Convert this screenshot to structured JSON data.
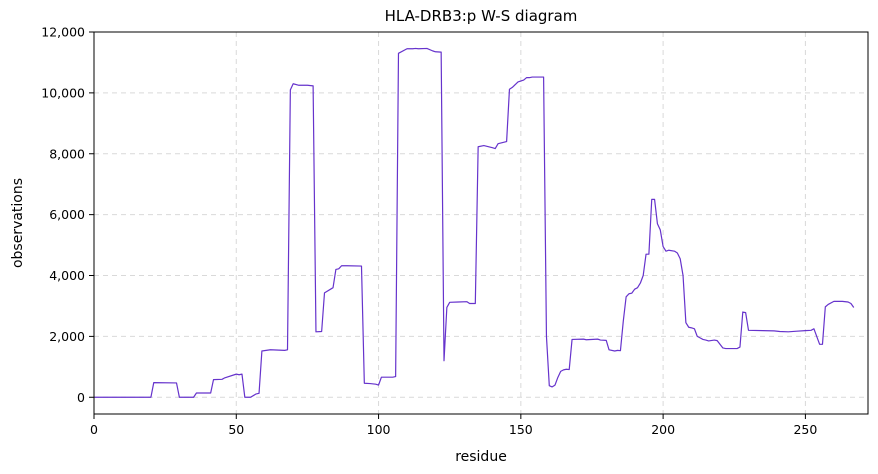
{
  "chart_data": {
    "type": "line",
    "title": "HLA-DRB3:p W-S diagram",
    "xlabel": "residue",
    "ylabel": "observations",
    "xlim": [
      0,
      272
    ],
    "ylim": [
      -550,
      12000
    ],
    "xticks": [
      0,
      50,
      100,
      150,
      200,
      250
    ],
    "xtick_labels": [
      "0",
      "50",
      "100",
      "150",
      "200",
      "250"
    ],
    "yticks": [
      0,
      2000,
      4000,
      6000,
      8000,
      10000,
      12000
    ],
    "ytick_labels": [
      "0",
      "2,000",
      "4,000",
      "6,000",
      "8,000",
      "10,000",
      "12,000"
    ],
    "grid": true,
    "series": [
      {
        "color": "#6633cc",
        "x": [
          0,
          20,
          21,
          29,
          30,
          35,
          36,
          41,
          42,
          45,
          46,
          50,
          51,
          52,
          53,
          55,
          57,
          58,
          59,
          62,
          67,
          68,
          69,
          70,
          72,
          75,
          77,
          78,
          80,
          81,
          84,
          85,
          86,
          87,
          89,
          94,
          95,
          97,
          99,
          100,
          101,
          104,
          105,
          106,
          107,
          110,
          112,
          113,
          114,
          117,
          119,
          120,
          122,
          123,
          124,
          125,
          128,
          131,
          132,
          134,
          135,
          137,
          140,
          141,
          142,
          145,
          146,
          147,
          149,
          151,
          152,
          153,
          154,
          155,
          158,
          159,
          160,
          161,
          162,
          163,
          164,
          165,
          166,
          167,
          168,
          172,
          173,
          177,
          178,
          180,
          181,
          183,
          184,
          185,
          186,
          187,
          188,
          189,
          190,
          191,
          192,
          193,
          194,
          195,
          196,
          197,
          198,
          199,
          200,
          201,
          202,
          204,
          205,
          206,
          207,
          208,
          209,
          210,
          211,
          212,
          213,
          214,
          215,
          216,
          218,
          219,
          221,
          222,
          226,
          227,
          228,
          229,
          230,
          235,
          239,
          241,
          244,
          247,
          250,
          252,
          253,
          255,
          256,
          257,
          258,
          260,
          263,
          265,
          266,
          267
        ],
        "y": [
          0,
          0,
          480,
          470,
          0,
          0,
          140,
          140,
          580,
          590,
          640,
          760,
          740,
          760,
          0,
          0,
          110,
          130,
          1520,
          1560,
          1540,
          1560,
          10100,
          10300,
          10250,
          10250,
          10230,
          2150,
          2160,
          3430,
          3600,
          4200,
          4220,
          4320,
          4320,
          4310,
          460,
          450,
          430,
          400,
          660,
          660,
          660,
          680,
          11300,
          11450,
          11450,
          11460,
          11450,
          11460,
          11380,
          11350,
          11340,
          1200,
          2950,
          3120,
          3130,
          3140,
          3080,
          3080,
          8230,
          8270,
          8200,
          8170,
          8330,
          8400,
          10120,
          10180,
          10360,
          10420,
          10500,
          10500,
          10520,
          10520,
          10520,
          2000,
          380,
          340,
          400,
          650,
          850,
          900,
          920,
          910,
          1900,
          1910,
          1890,
          1910,
          1880,
          1870,
          1560,
          1520,
          1540,
          1530,
          2500,
          3300,
          3400,
          3420,
          3550,
          3600,
          3750,
          4000,
          4700,
          4700,
          6500,
          6500,
          5700,
          5500,
          4950,
          4800,
          4830,
          4800,
          4740,
          4550,
          4000,
          2450,
          2300,
          2280,
          2250,
          2000,
          1950,
          1900,
          1880,
          1850,
          1880,
          1860,
          1620,
          1600,
          1600,
          1650,
          2800,
          2780,
          2200,
          2190,
          2180,
          2160,
          2150,
          2170,
          2190,
          2200,
          2250,
          1740,
          1740,
          2970,
          3050,
          3150,
          3150,
          3130,
          3080,
          2950
        ]
      }
    ]
  }
}
